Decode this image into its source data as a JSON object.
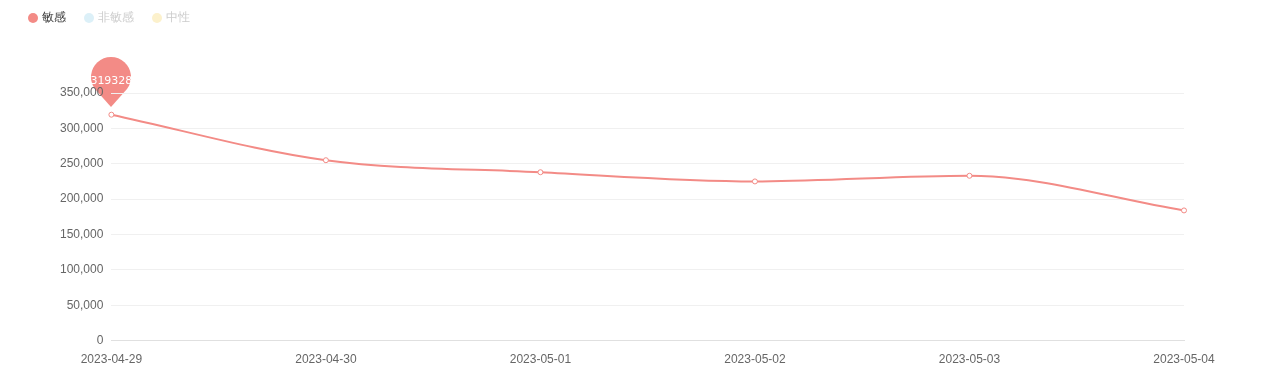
{
  "chart_data": {
    "type": "line",
    "categories": [
      "2023-04-29",
      "2023-04-30",
      "2023-05-01",
      "2023-05-02",
      "2023-05-03",
      "2023-05-04"
    ],
    "series": [
      {
        "name": "敏感",
        "color": "#f38b86",
        "values": [
          319328,
          255000,
          238000,
          225000,
          233000,
          184000
        ]
      },
      {
        "name": "非敏感",
        "color": "#dcf0f8",
        "values": [
          null,
          null,
          null,
          null,
          null,
          null
        ]
      },
      {
        "name": "中性",
        "color": "#fcf1cc",
        "values": [
          null,
          null,
          null,
          null,
          null,
          null
        ]
      }
    ],
    "ylim": [
      0,
      350000
    ],
    "yticks": [
      0,
      {
        "value": 50000,
        "label": "50,000"
      },
      {
        "value": 100000,
        "label": "100,000"
      },
      {
        "value": 150000,
        "label": "150,000"
      },
      {
        "value": 200000,
        "label": "200,000"
      },
      {
        "value": 250000,
        "label": "250,000"
      },
      {
        "value": 300000,
        "label": "300,000"
      },
      {
        "value": 350000,
        "label": "350,000"
      }
    ],
    "grid": "y",
    "legend": "top left",
    "marker": "circle",
    "line_style": "solid",
    "annotations": [
      {
        "text": "319328",
        "x": "2023-04-29",
        "y": 319328
      }
    ]
  }
}
